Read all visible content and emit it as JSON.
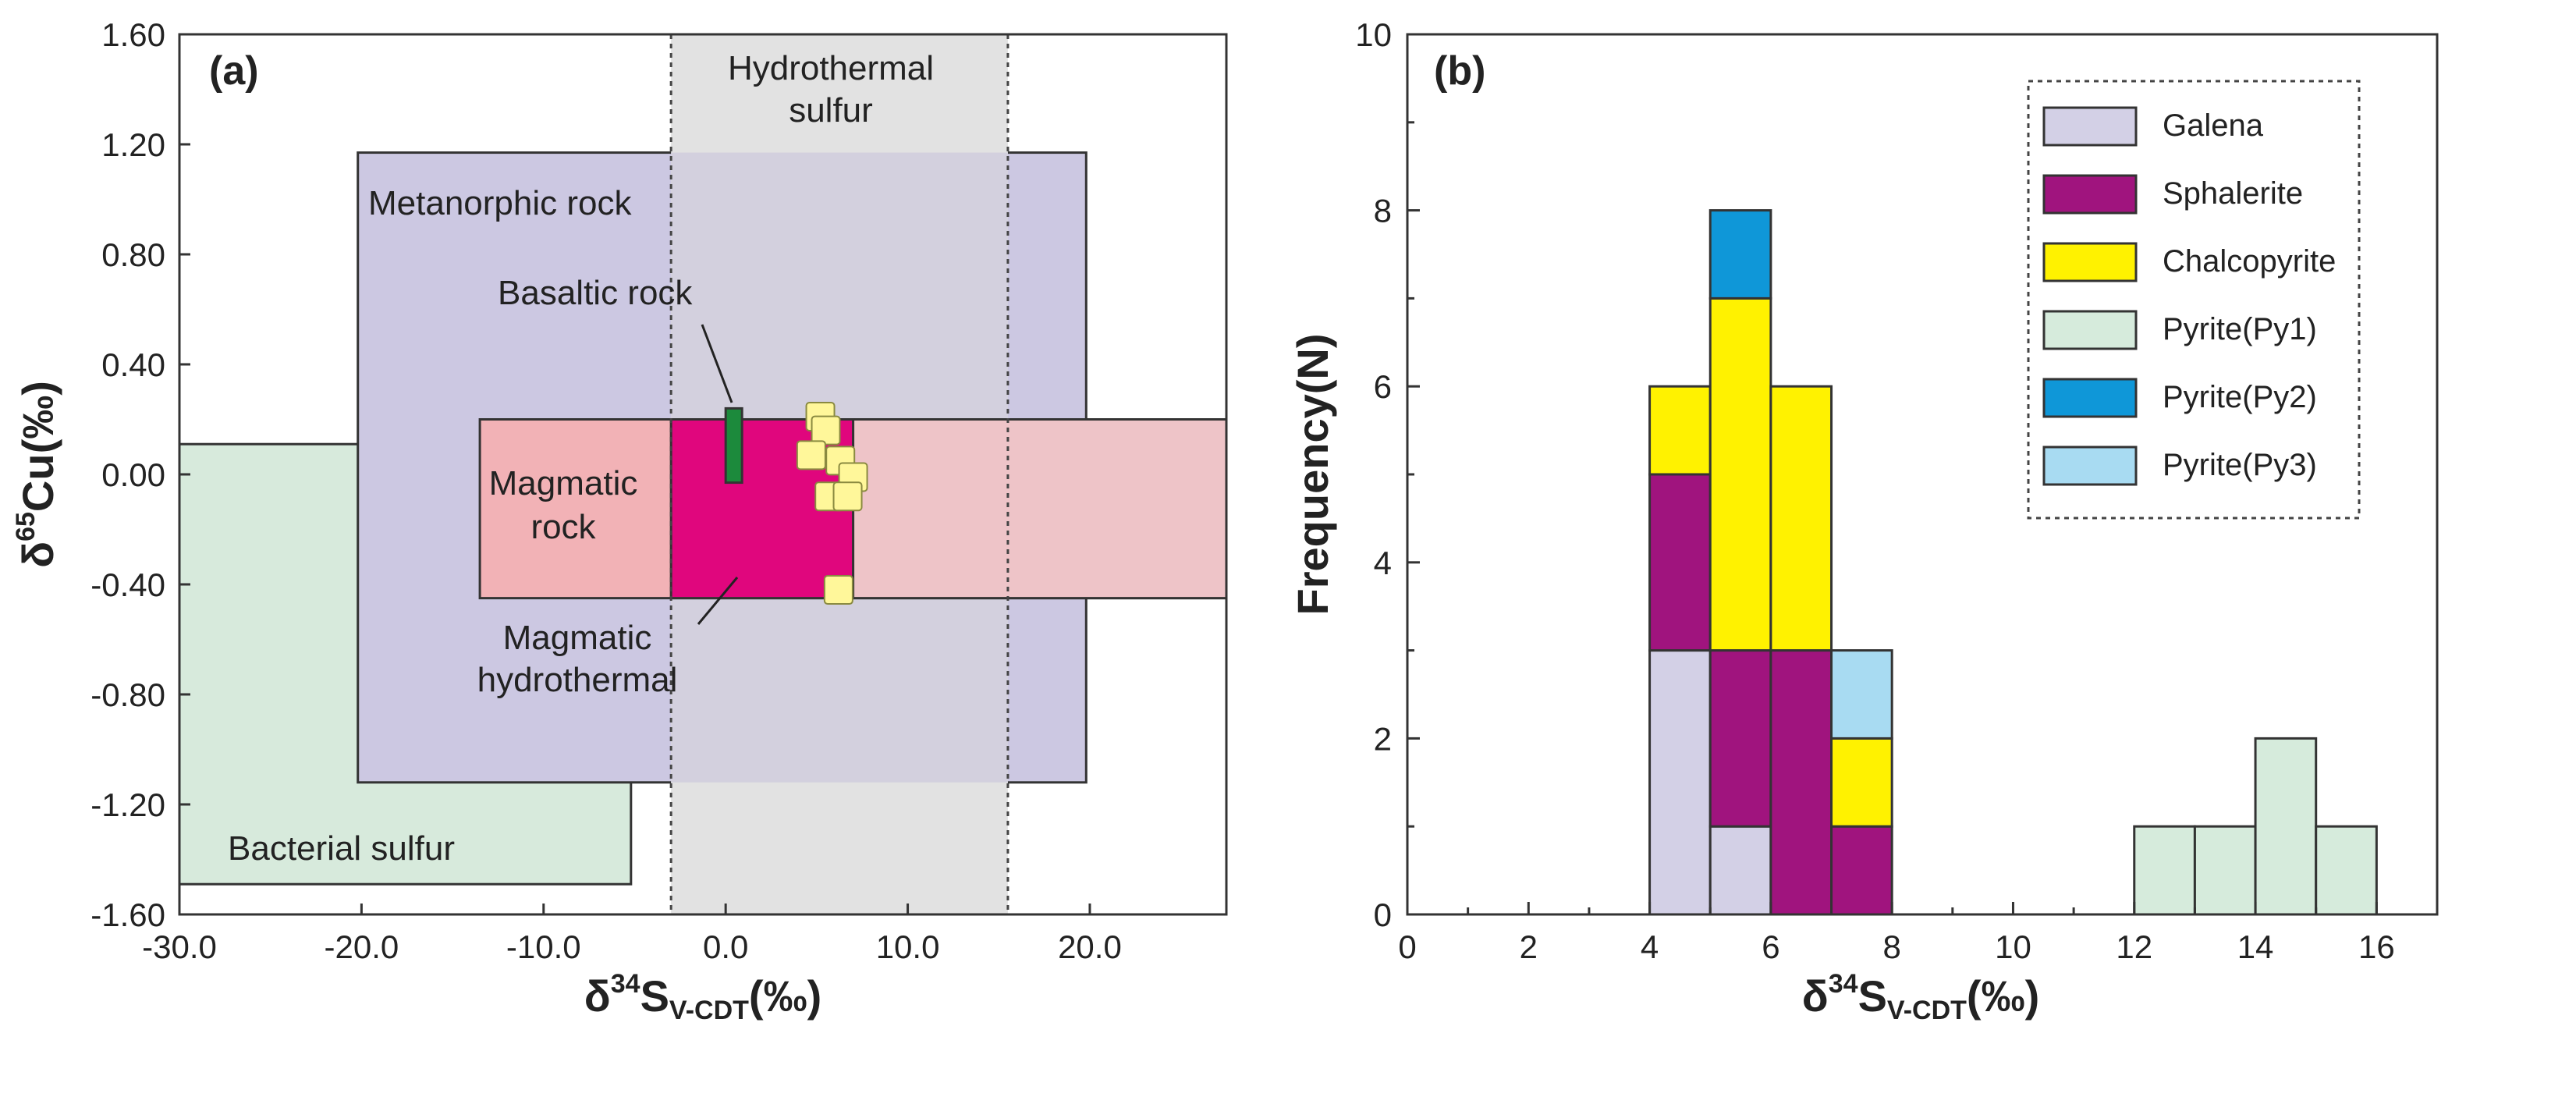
{
  "colors": {
    "bacterial": "#d7eadc",
    "metamorphic": "#ccc8e2",
    "hydrothermal": "#e2e2e2",
    "overlap": "#d3d0de",
    "magmatic": "#f2b2b6",
    "magmatic_right": "#eec4c8",
    "magmatic_hydrothermal": "#e0067d",
    "basaltic": "#1c8a3c",
    "point_fill": "#fff79a",
    "point_stroke": "#8a8a40",
    "galena": "#d3d0e6",
    "sphalerite": "#a0147e",
    "chalcopyrite": "#fff200",
    "py1": "#d6ebdc",
    "py2": "#0f97d8",
    "py3": "#a8dbf2",
    "axis": "#333333"
  },
  "chart_data": [
    {
      "id": "a",
      "panel_label": "(a)",
      "type": "scatter",
      "xlabel_main": "δ",
      "xlabel_sup": "34",
      "xlabel_S": "S",
      "xlabel_sub": "V-CDT",
      "xlabel_unit": "(‰)",
      "ylabel_main": "δ",
      "ylabel_sup": "65",
      "ylabel_Cu": "Cu",
      "ylabel_unit": "(‰)",
      "xlim": [
        -30,
        27.5
      ],
      "ylim": [
        -1.6,
        1.6
      ],
      "x_ticks": [
        -30,
        -20,
        -10,
        0,
        10,
        20
      ],
      "x_tick_labels": [
        "-30.0",
        "-20.0",
        "-10.0",
        "0.0",
        "10.0",
        "20.0"
      ],
      "y_ticks": [
        1.6,
        1.2,
        0.8,
        0.4,
        0.0,
        -0.4,
        -0.8,
        -1.2,
        -1.6
      ],
      "y_tick_labels": [
        "1.60",
        "1.20",
        "0.80",
        "0.40",
        "0.00",
        "-0.40",
        "-0.80",
        "-1.20",
        "-1.60"
      ],
      "fields": [
        {
          "key": "bacterial",
          "x": [
            -30,
            -5.2
          ],
          "y": [
            -1.49,
            0.11
          ],
          "color_key": "bacterial"
        },
        {
          "key": "metamorphic",
          "x": [
            -20.2,
            19.8
          ],
          "y": [
            -1.12,
            1.17
          ],
          "color_key": "metamorphic"
        },
        {
          "key": "hydrothermal",
          "x": [
            -3,
            15.5
          ],
          "y": [
            -1.6,
            1.6
          ],
          "color_key": "hydrothermal"
        },
        {
          "key": "overlap",
          "x": [
            -3,
            15.5
          ],
          "y": [
            -1.12,
            1.17
          ],
          "color_key": "overlap"
        },
        {
          "key": "magmatic",
          "x": [
            -13.5,
            27.5
          ],
          "y": [
            -0.45,
            0.2
          ],
          "color_key": "magmatic"
        },
        {
          "key": "magmatic_right",
          "x": [
            7,
            27.5
          ],
          "y": [
            -0.45,
            0.2
          ],
          "color_key": "magmatic_right"
        },
        {
          "key": "magmatic_hydrothermal",
          "x": [
            -3,
            7
          ],
          "y": [
            -0.45,
            0.2
          ],
          "color_key": "magmatic_hydrothermal"
        },
        {
          "key": "basaltic",
          "x": [
            0.0,
            0.9
          ],
          "y": [
            -0.03,
            0.24
          ],
          "color_key": "basaltic"
        }
      ],
      "field_labels": {
        "hydrothermal_line1": "Hydrothermal",
        "hydrothermal_line2": "sulfur",
        "metamorphic": "Metanorphic rock",
        "basaltic": "Basaltic rock",
        "magmatic_line1": "Magmatic",
        "magmatic_line2": "rock",
        "magmatic_hydro_line1": "Magmatic",
        "magmatic_hydro_line2": "hydrothermal",
        "bacterial": "Bacterial sulfur"
      },
      "points": [
        {
          "x": 5.2,
          "y": 0.21
        },
        {
          "x": 5.5,
          "y": 0.16
        },
        {
          "x": 6.3,
          "y": 0.05
        },
        {
          "x": 4.7,
          "y": 0.07
        },
        {
          "x": 7.0,
          "y": -0.01
        },
        {
          "x": 5.7,
          "y": -0.08
        },
        {
          "x": 6.7,
          "y": -0.08
        },
        {
          "x": 6.2,
          "y": -0.42
        }
      ]
    },
    {
      "id": "b",
      "panel_label": "(b)",
      "type": "bar",
      "stacked": true,
      "xlabel_main": "δ",
      "xlabel_sup": "34",
      "xlabel_S": "S",
      "xlabel_sub": "V-CDT",
      "xlabel_unit": "(‰)",
      "ylabel": "Frequency(N)",
      "xlim": [
        0,
        17
      ],
      "ylim": [
        0,
        10
      ],
      "x_ticks": [
        0,
        2,
        4,
        6,
        8,
        10,
        12,
        14,
        16
      ],
      "y_ticks": [
        0,
        2,
        4,
        6,
        8,
        10
      ],
      "bin_width": 1,
      "bins": [
        4,
        5,
        6,
        7,
        12,
        13,
        14,
        15
      ],
      "series": [
        {
          "key": "galena",
          "name": "Galena",
          "values": [
            3,
            1,
            0,
            0,
            0,
            0,
            0,
            0
          ]
        },
        {
          "key": "sphalerite",
          "name": "Sphalerite",
          "values": [
            2,
            2,
            3,
            1,
            0,
            0,
            0,
            0
          ]
        },
        {
          "key": "chalcopyrite",
          "name": "Chalcopyrite",
          "values": [
            1,
            4,
            3,
            1,
            0,
            0,
            0,
            0
          ]
        },
        {
          "key": "py1",
          "name": "Pyrite(Py1)",
          "values": [
            0,
            0,
            0,
            0,
            1,
            1,
            2,
            1
          ]
        },
        {
          "key": "py2",
          "name": "Pyrite(Py2)",
          "values": [
            0,
            1,
            0,
            0,
            0,
            0,
            0,
            0
          ]
        },
        {
          "key": "py3",
          "name": "Pyrite(Py3)",
          "values": [
            0,
            0,
            0,
            1,
            0,
            0,
            0,
            0
          ]
        }
      ],
      "legend_position": "top-right"
    }
  ]
}
